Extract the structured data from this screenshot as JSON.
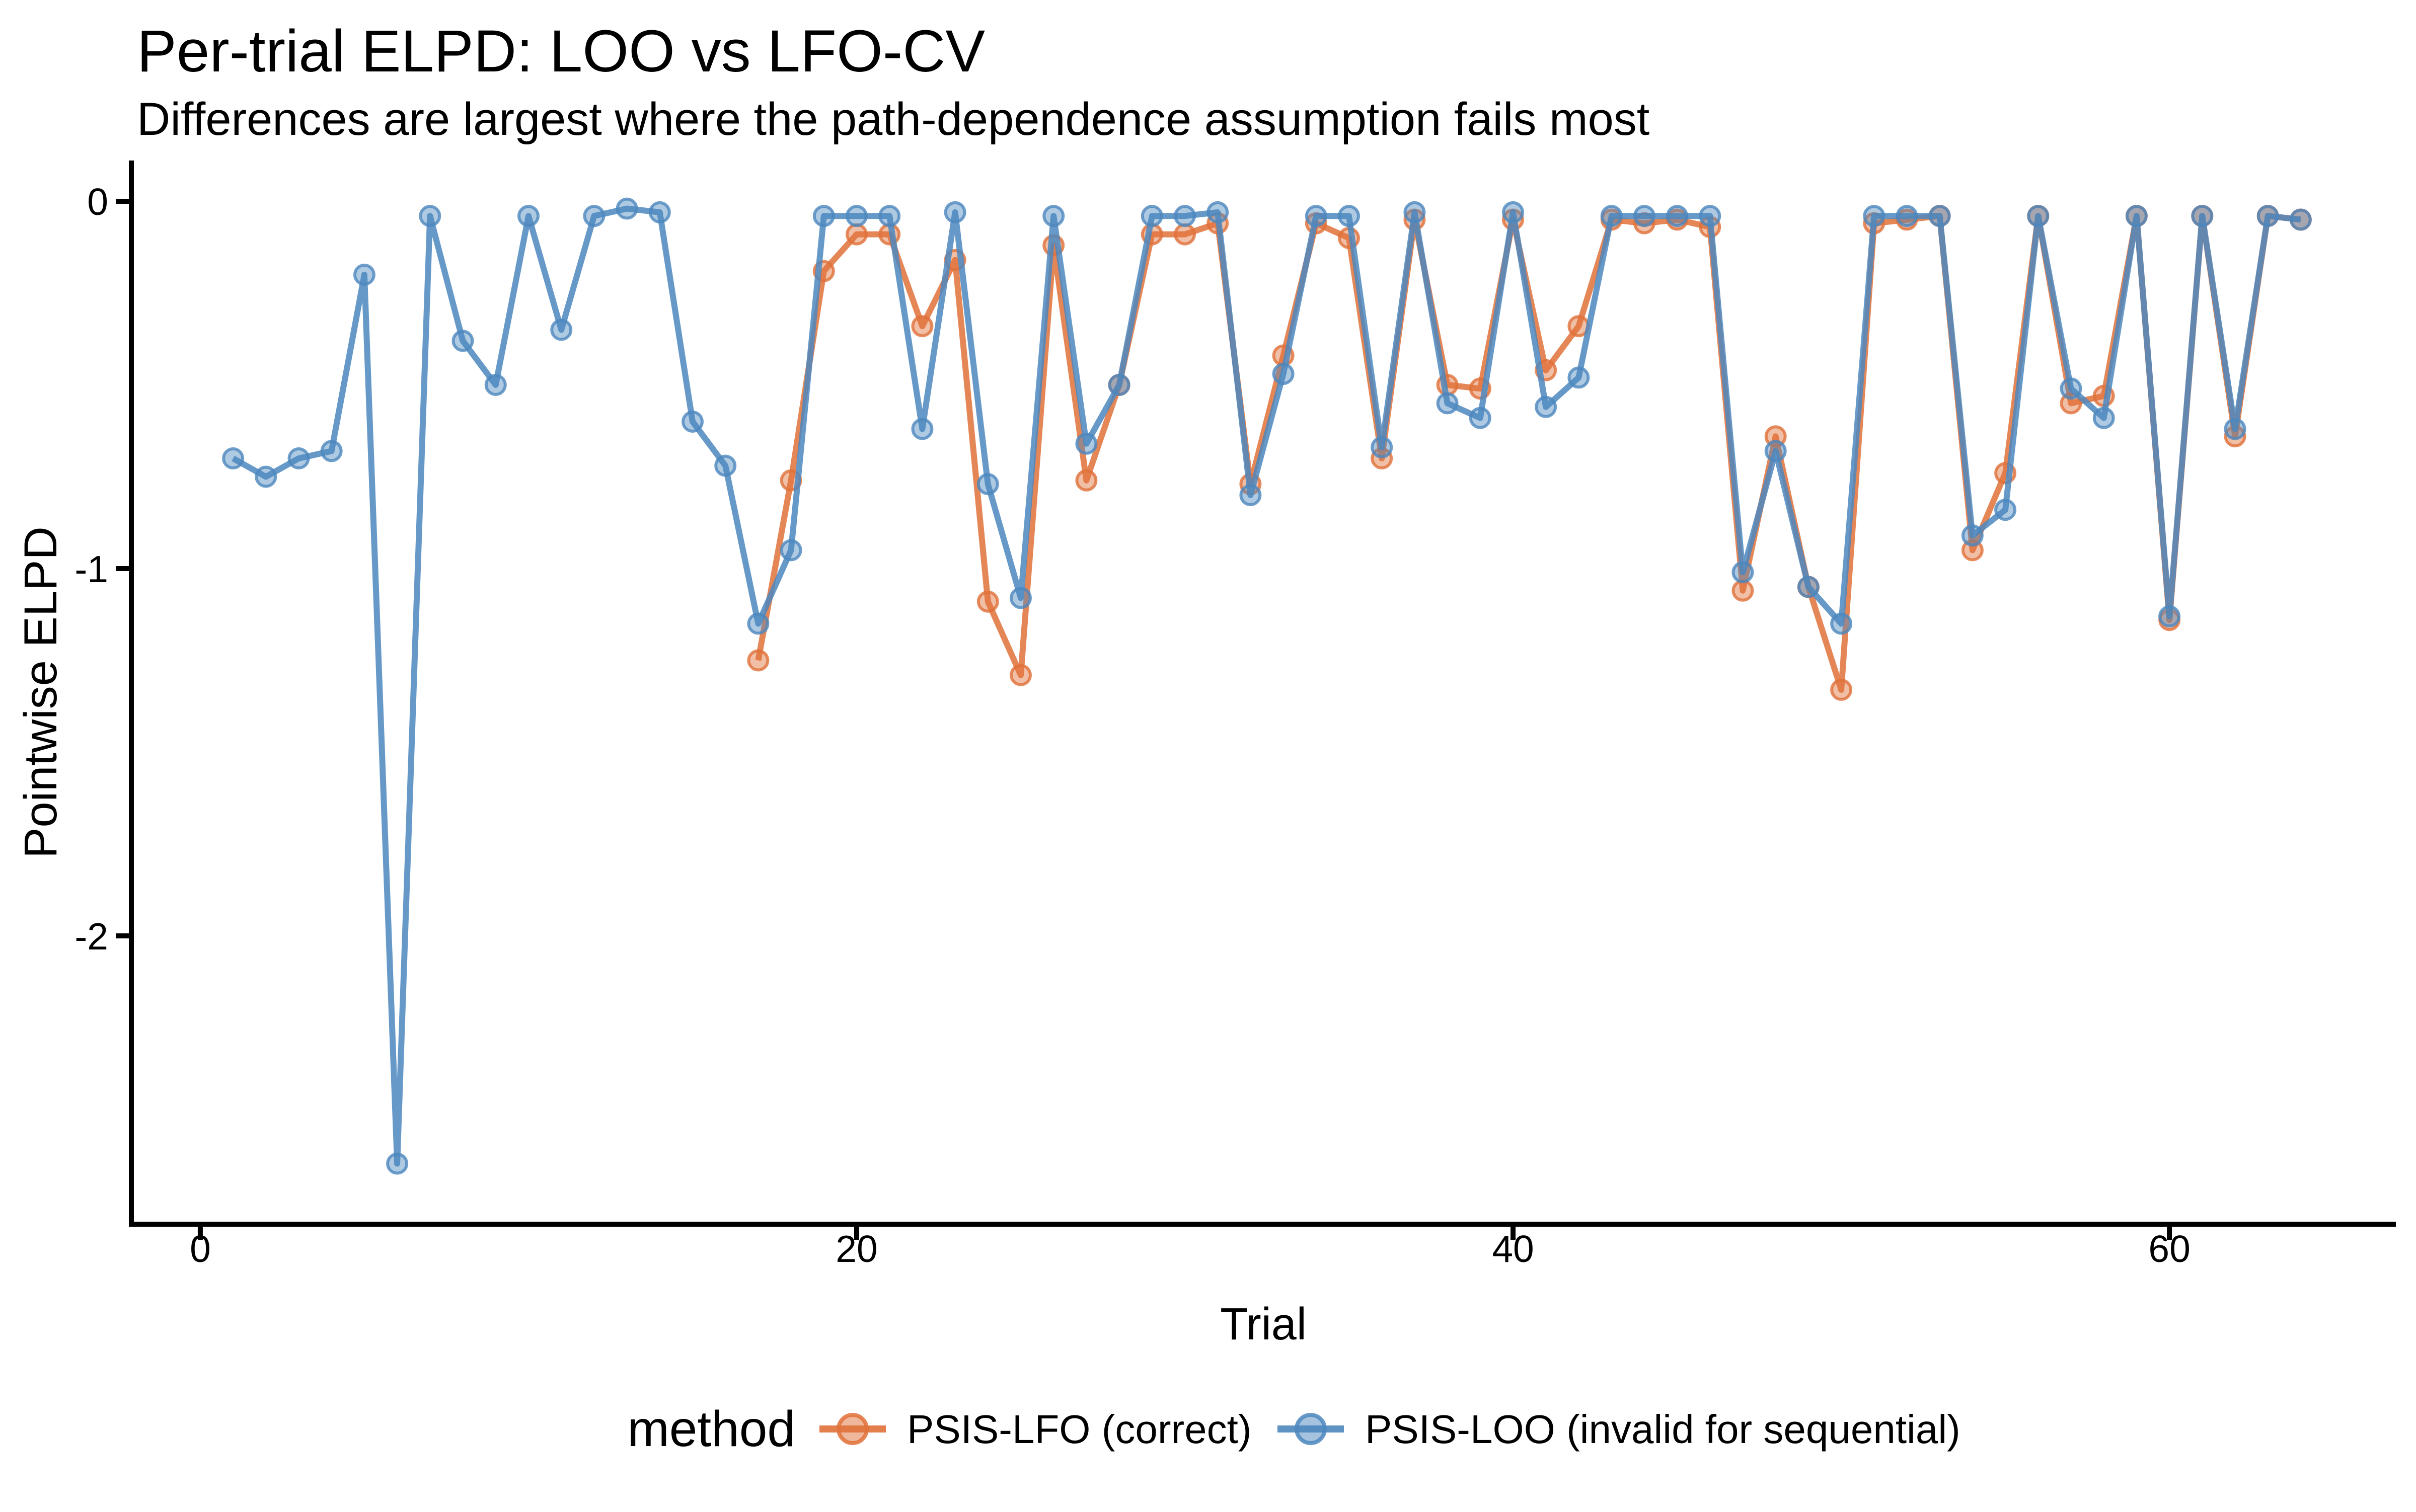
{
  "title": "Per-trial ELPD: LOO vs LFO-CV",
  "subtitle": "Differences are largest where the path-dependence assumption fails most",
  "axes": {
    "x_title": "Trial",
    "y_title": "Pointwise ELPD",
    "x_tick_labels": [
      "0",
      "20",
      "40",
      "60"
    ],
    "y_tick_labels": [
      "0",
      "-1",
      "-2"
    ]
  },
  "legend": {
    "title": "method",
    "items": [
      {
        "label": "PSIS-LFO (correct)",
        "color": "#E0713A"
      },
      {
        "label": "PSIS-LOO (invalid for sequential)",
        "color": "#4C87BE"
      }
    ]
  },
  "chart_data": {
    "type": "line",
    "title": "Per-trial ELPD: LOO vs LFO-CV",
    "subtitle": "Differences are largest where the path-dependence assumption fails most",
    "xlabel": "Trial",
    "ylabel": "Pointwise ELPD",
    "xlim": [
      -2.1,
      66.9
    ],
    "ylim": [
      -2.785,
      0.111
    ],
    "x_ticks": [
      0,
      20,
      40,
      60
    ],
    "y_ticks": [
      0,
      -1,
      -2
    ],
    "grid": false,
    "legend_position": "bottom",
    "legend_title": "method",
    "marker": "circle",
    "series": [
      {
        "id": "psis-lfo",
        "name": "PSIS-LFO (correct)",
        "color": "#E0713A",
        "x": [
          17,
          18,
          19,
          20,
          21,
          22,
          23,
          24,
          25,
          26,
          27,
          28,
          29,
          30,
          31,
          32,
          33,
          34,
          35,
          36,
          37,
          38,
          39,
          40,
          41,
          42,
          43,
          44,
          45,
          46,
          47,
          48,
          49,
          50,
          51,
          52,
          53,
          54,
          55,
          56,
          57,
          58,
          59,
          60,
          61,
          62,
          63,
          64
        ],
        "y": [
          -1.25,
          -0.76,
          -0.19,
          -0.09,
          -0.09,
          -0.34,
          -0.16,
          -1.09,
          -1.29,
          -0.12,
          -0.76,
          -0.5,
          -0.09,
          -0.09,
          -0.06,
          -0.77,
          -0.42,
          -0.06,
          -0.1,
          -0.7,
          -0.05,
          -0.5,
          -0.51,
          -0.05,
          -0.46,
          -0.34,
          -0.05,
          -0.06,
          -0.05,
          -0.07,
          -1.06,
          -0.64,
          -1.05,
          -1.33,
          -0.06,
          -0.05,
          -0.04,
          -0.95,
          -0.74,
          -0.04,
          -0.55,
          -0.53,
          -0.04,
          -1.14,
          -0.04,
          -0.64,
          -0.04,
          -0.05
        ]
      },
      {
        "id": "psis-loo",
        "name": "PSIS-LOO (invalid for sequential)",
        "color": "#4C87BE",
        "x": [
          1,
          2,
          3,
          4,
          5,
          6,
          7,
          8,
          9,
          10,
          11,
          12,
          13,
          14,
          15,
          16,
          17,
          18,
          19,
          20,
          21,
          22,
          23,
          24,
          25,
          26,
          27,
          28,
          29,
          30,
          31,
          32,
          33,
          34,
          35,
          36,
          37,
          38,
          39,
          40,
          41,
          42,
          43,
          44,
          45,
          46,
          47,
          48,
          49,
          50,
          51,
          52,
          53,
          54,
          55,
          56,
          57,
          58,
          59,
          60,
          61,
          62,
          63,
          64
        ],
        "y": [
          -0.7,
          -0.75,
          -0.7,
          -0.68,
          -0.2,
          -2.62,
          -0.04,
          -0.38,
          -0.5,
          -0.04,
          -0.35,
          -0.04,
          -0.02,
          -0.03,
          -0.6,
          -0.72,
          -1.15,
          -0.95,
          -0.04,
          -0.04,
          -0.04,
          -0.62,
          -0.03,
          -0.77,
          -1.08,
          -0.04,
          -0.66,
          -0.5,
          -0.04,
          -0.04,
          -0.03,
          -0.8,
          -0.47,
          -0.04,
          -0.04,
          -0.67,
          -0.03,
          -0.55,
          -0.59,
          -0.03,
          -0.56,
          -0.48,
          -0.04,
          -0.04,
          -0.04,
          -0.04,
          -1.01,
          -0.68,
          -1.05,
          -1.15,
          -0.04,
          -0.04,
          -0.04,
          -0.91,
          -0.84,
          -0.04,
          -0.51,
          -0.59,
          -0.04,
          -1.13,
          -0.04,
          -0.62,
          -0.04,
          -0.05
        ]
      }
    ]
  }
}
